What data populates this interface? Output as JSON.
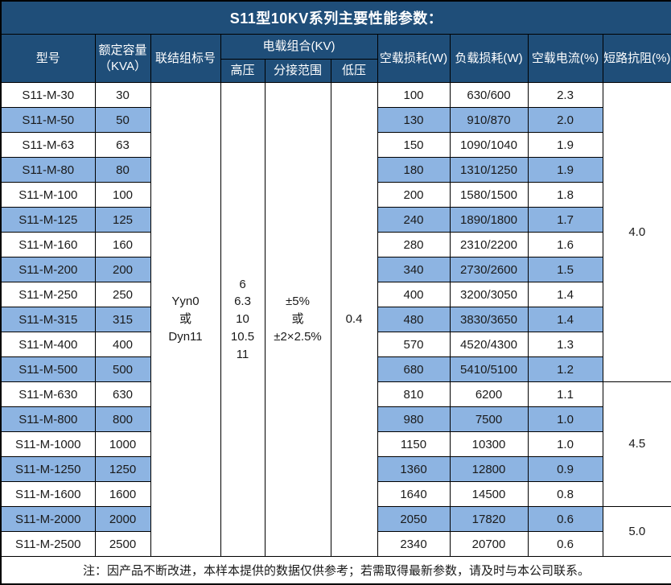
{
  "title": "S11型10KV系列主要性能参数：",
  "columns": {
    "model": "型号",
    "capacity_line1": "额定容量",
    "capacity_line2": "（KVA）",
    "connection": "联结组标号",
    "load_combo": "电载组合(KV)",
    "hv": "高压",
    "tap_range": "分接范围",
    "lv": "低压",
    "no_load_loss": "空载损耗(W)",
    "load_loss": "负载损耗(W)",
    "no_load_current": "空载电流(%)",
    "impedance": "短路抗阻(%)"
  },
  "merged": {
    "connection_lines": [
      "Yyn0",
      "或",
      "Dyn11"
    ],
    "hv_lines": [
      "6",
      "6.3",
      "10",
      "10.5",
      "11"
    ],
    "tap_range_lines": [
      "±5%",
      "或",
      "±2×2.5%"
    ],
    "lv_value": "0.4"
  },
  "impedance_groups": [
    {
      "value": "4.0",
      "start": 0,
      "span": 12
    },
    {
      "value": "4.5",
      "start": 12,
      "span": 5
    },
    {
      "value": "5.0",
      "start": 17,
      "span": 2
    }
  ],
  "rows": [
    {
      "model": "S11-M-30",
      "kva": "30",
      "no_load_loss": "100",
      "load_loss": "630/600",
      "no_load_current": "2.3"
    },
    {
      "model": "S11-M-50",
      "kva": "50",
      "no_load_loss": "130",
      "load_loss": "910/870",
      "no_load_current": "2.0"
    },
    {
      "model": "S11-M-63",
      "kva": "63",
      "no_load_loss": "150",
      "load_loss": "1090/1040",
      "no_load_current": "1.9"
    },
    {
      "model": "S11-M-80",
      "kva": "80",
      "no_load_loss": "180",
      "load_loss": "1310/1250",
      "no_load_current": "1.9"
    },
    {
      "model": "S11-M-100",
      "kva": "100",
      "no_load_loss": "200",
      "load_loss": "1580/1500",
      "no_load_current": "1.8"
    },
    {
      "model": "S11-M-125",
      "kva": "125",
      "no_load_loss": "240",
      "load_loss": "1890/1800",
      "no_load_current": "1.7"
    },
    {
      "model": "S11-M-160",
      "kva": "160",
      "no_load_loss": "280",
      "load_loss": "2310/2200",
      "no_load_current": "1.6"
    },
    {
      "model": "S11-M-200",
      "kva": "200",
      "no_load_loss": "340",
      "load_loss": "2730/2600",
      "no_load_current": "1.5"
    },
    {
      "model": "S11-M-250",
      "kva": "250",
      "no_load_loss": "400",
      "load_loss": "3200/3050",
      "no_load_current": "1.4"
    },
    {
      "model": "S11-M-315",
      "kva": "315",
      "no_load_loss": "480",
      "load_loss": "3830/3650",
      "no_load_current": "1.4"
    },
    {
      "model": "S11-M-400",
      "kva": "400",
      "no_load_loss": "570",
      "load_loss": "4520/4300",
      "no_load_current": "1.3"
    },
    {
      "model": "S11-M-500",
      "kva": "500",
      "no_load_loss": "680",
      "load_loss": "5410/5100",
      "no_load_current": "1.2"
    },
    {
      "model": "S11-M-630",
      "kva": "630",
      "no_load_loss": "810",
      "load_loss": "6200",
      "no_load_current": "1.1"
    },
    {
      "model": "S11-M-800",
      "kva": "800",
      "no_load_loss": "980",
      "load_loss": "7500",
      "no_load_current": "1.0"
    },
    {
      "model": "S11-M-1000",
      "kva": "1000",
      "no_load_loss": "1150",
      "load_loss": "10300",
      "no_load_current": "1.0"
    },
    {
      "model": "S11-M-1250",
      "kva": "1250",
      "no_load_loss": "1360",
      "load_loss": "12800",
      "no_load_current": "0.9"
    },
    {
      "model": "S11-M-1600",
      "kva": "1600",
      "no_load_loss": "1640",
      "load_loss": "14500",
      "no_load_current": "0.8"
    },
    {
      "model": "S11-M-2000",
      "kva": "2000",
      "no_load_loss": "2050",
      "load_loss": "17820",
      "no_load_current": "0.6"
    },
    {
      "model": "S11-M-2500",
      "kva": "2500",
      "no_load_loss": "2340",
      "load_loss": "20700",
      "no_load_current": "0.6"
    }
  ],
  "note": "注：因产品不断改进，本样本提供的数据仅供参考；若需取得最新参数，请及时与本公司联系。",
  "colors": {
    "header_bg": "#1F4E79",
    "header_text": "#ffffff",
    "row_alt_bg": "#8DB4E2",
    "row_bg": "#ffffff",
    "border": "#000000",
    "data_text": "#1a1a1a"
  }
}
